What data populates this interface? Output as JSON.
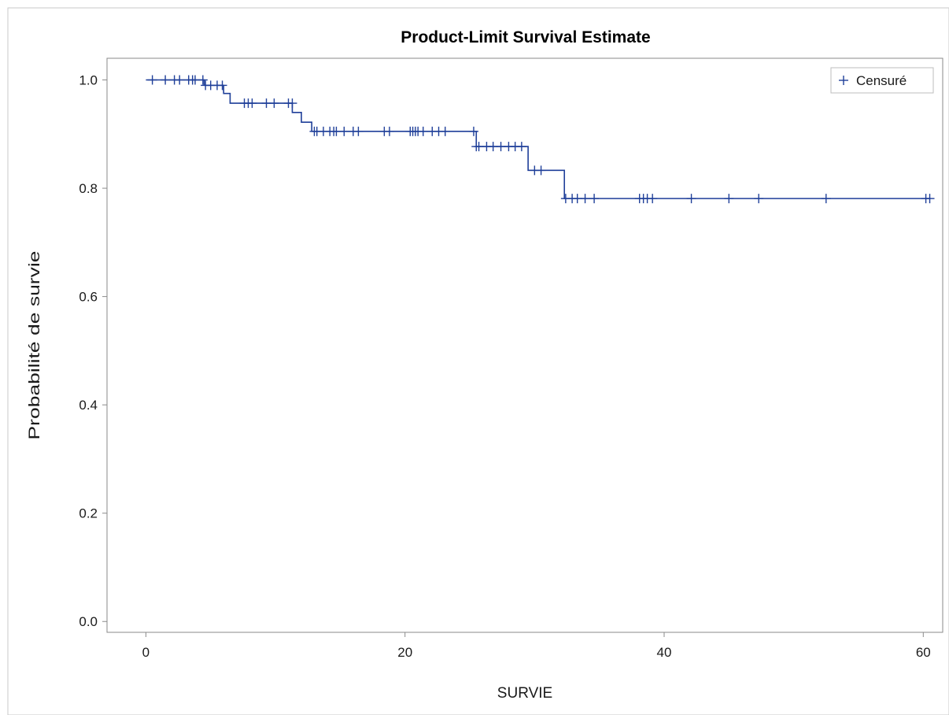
{
  "chart_data": {
    "type": "line",
    "subtype": "kaplan-meier-step",
    "title": "Product-Limit Survival Estimate",
    "xlabel": "SURVIE",
    "ylabel": "Probabilité de survie",
    "xlim": [
      -3,
      61.5
    ],
    "ylim": [
      -0.02,
      1.04
    ],
    "x_ticks": [
      0,
      20,
      40,
      60
    ],
    "y_ticks": [
      0.0,
      0.2,
      0.4,
      0.6,
      0.8,
      1.0
    ],
    "x_tick_labels": [
      "0",
      "20",
      "40",
      "60"
    ],
    "y_tick_labels": [
      "0.0",
      "0.2",
      "0.4",
      "0.6",
      "0.8",
      "1.0"
    ],
    "grid": false,
    "legend": {
      "position": "top-right",
      "entries": [
        {
          "symbol": "+",
          "label": "Censuré"
        }
      ]
    },
    "colors": {
      "series": "#1f3f99",
      "frame": "#8a8a8a"
    },
    "survival_steps": [
      {
        "x": 0.0,
        "y": 1.0
      },
      {
        "x": 4.5,
        "y": 0.99
      },
      {
        "x": 6.0,
        "y": 0.975
      },
      {
        "x": 6.5,
        "y": 0.957
      },
      {
        "x": 11.3,
        "y": 0.94
      },
      {
        "x": 12.0,
        "y": 0.922
      },
      {
        "x": 12.8,
        "y": 0.905
      },
      {
        "x": 25.5,
        "y": 0.877
      },
      {
        "x": 29.5,
        "y": 0.833
      },
      {
        "x": 32.3,
        "y": 0.781
      }
    ],
    "x_end": 60.5,
    "censored": [
      {
        "x": 0.5,
        "y": 1.0
      },
      {
        "x": 1.5,
        "y": 1.0
      },
      {
        "x": 2.2,
        "y": 1.0
      },
      {
        "x": 2.6,
        "y": 1.0
      },
      {
        "x": 3.3,
        "y": 1.0
      },
      {
        "x": 3.6,
        "y": 1.0
      },
      {
        "x": 3.8,
        "y": 1.0
      },
      {
        "x": 4.4,
        "y": 1.0
      },
      {
        "x": 4.6,
        "y": 0.99
      },
      {
        "x": 5.0,
        "y": 0.99
      },
      {
        "x": 5.5,
        "y": 0.99
      },
      {
        "x": 5.9,
        "y": 0.99
      },
      {
        "x": 7.6,
        "y": 0.957
      },
      {
        "x": 7.9,
        "y": 0.957
      },
      {
        "x": 8.2,
        "y": 0.957
      },
      {
        "x": 9.3,
        "y": 0.957
      },
      {
        "x": 9.9,
        "y": 0.957
      },
      {
        "x": 11.0,
        "y": 0.957
      },
      {
        "x": 11.3,
        "y": 0.957
      },
      {
        "x": 13.0,
        "y": 0.905
      },
      {
        "x": 13.2,
        "y": 0.905
      },
      {
        "x": 13.7,
        "y": 0.905
      },
      {
        "x": 14.2,
        "y": 0.905
      },
      {
        "x": 14.5,
        "y": 0.905
      },
      {
        "x": 14.7,
        "y": 0.905
      },
      {
        "x": 15.3,
        "y": 0.905
      },
      {
        "x": 16.0,
        "y": 0.905
      },
      {
        "x": 16.4,
        "y": 0.905
      },
      {
        "x": 18.4,
        "y": 0.905
      },
      {
        "x": 18.8,
        "y": 0.905
      },
      {
        "x": 20.4,
        "y": 0.905
      },
      {
        "x": 20.6,
        "y": 0.905
      },
      {
        "x": 20.8,
        "y": 0.905
      },
      {
        "x": 21.0,
        "y": 0.905
      },
      {
        "x": 21.4,
        "y": 0.905
      },
      {
        "x": 22.1,
        "y": 0.905
      },
      {
        "x": 22.6,
        "y": 0.905
      },
      {
        "x": 23.1,
        "y": 0.905
      },
      {
        "x": 25.3,
        "y": 0.905
      },
      {
        "x": 25.5,
        "y": 0.877
      },
      {
        "x": 25.7,
        "y": 0.877
      },
      {
        "x": 26.3,
        "y": 0.877
      },
      {
        "x": 26.8,
        "y": 0.877
      },
      {
        "x": 27.4,
        "y": 0.877
      },
      {
        "x": 28.0,
        "y": 0.877
      },
      {
        "x": 28.5,
        "y": 0.877
      },
      {
        "x": 29.0,
        "y": 0.877
      },
      {
        "x": 30.0,
        "y": 0.833
      },
      {
        "x": 30.5,
        "y": 0.833
      },
      {
        "x": 32.4,
        "y": 0.781
      },
      {
        "x": 32.9,
        "y": 0.781
      },
      {
        "x": 33.3,
        "y": 0.781
      },
      {
        "x": 33.9,
        "y": 0.781
      },
      {
        "x": 34.6,
        "y": 0.781
      },
      {
        "x": 38.1,
        "y": 0.781
      },
      {
        "x": 38.4,
        "y": 0.781
      },
      {
        "x": 38.7,
        "y": 0.781
      },
      {
        "x": 39.1,
        "y": 0.781
      },
      {
        "x": 42.1,
        "y": 0.781
      },
      {
        "x": 45.0,
        "y": 0.781
      },
      {
        "x": 47.3,
        "y": 0.781
      },
      {
        "x": 52.5,
        "y": 0.781
      },
      {
        "x": 60.2,
        "y": 0.781
      },
      {
        "x": 60.5,
        "y": 0.781
      }
    ]
  }
}
